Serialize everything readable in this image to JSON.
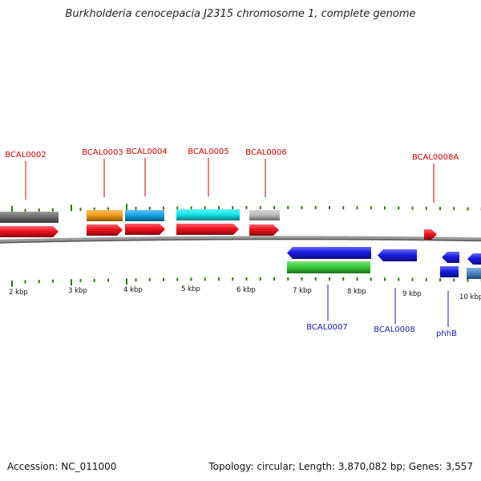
{
  "title": "Burkholderia cenocepacia J2315 chromosome 1, complete genome",
  "footer": {
    "accession": "Accession: NC_011000",
    "summary": "Topology: circular; Length: 3,870,082 bp; Genes: 3,557"
  },
  "ticks": {
    "major_labels": [
      "2 kbp",
      "3 kbp",
      "4 kbp",
      "5 kbp",
      "6 kbp",
      "7 kbp",
      "8 kbp",
      "9 kbp",
      "10 kbp"
    ]
  },
  "colors": {
    "tick": "#2a7a14",
    "forward_label": "#cc0000",
    "reverse_label": "#1a1aa8",
    "backbone": "#7a7a7a",
    "cds_forward": "#f2111d",
    "cds_reverse": "#1a1ae6"
  },
  "genes": [
    {
      "label": "BCAL0002",
      "strand": "+"
    },
    {
      "label": "BCAL0003",
      "strand": "+"
    },
    {
      "label": "BCAL0004",
      "strand": "+"
    },
    {
      "label": "BCAL0005",
      "strand": "+"
    },
    {
      "label": "BCAL0006",
      "strand": "+"
    },
    {
      "label": "BCAL0008A",
      "strand": "+"
    },
    {
      "label": "BCAL0007",
      "strand": "-"
    },
    {
      "label": "BCAL0008",
      "strand": "-"
    },
    {
      "label": "phhB",
      "strand": "-"
    }
  ]
}
